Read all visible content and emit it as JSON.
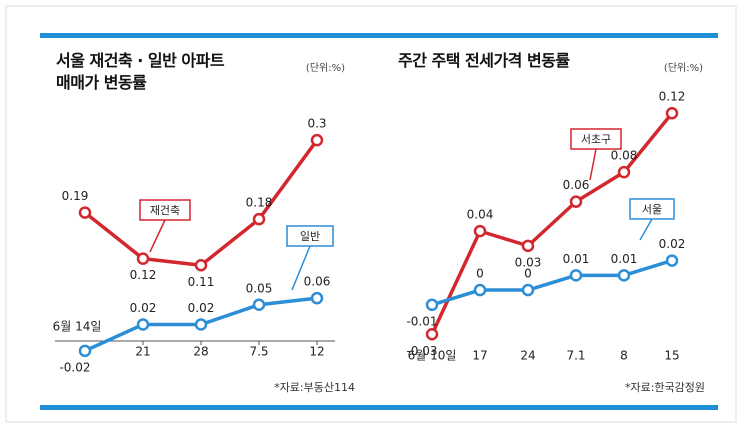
{
  "chart_data": [
    {
      "type": "line",
      "title": "서울 재건축 · 일반 아파트\n매매가 변동률",
      "unit": "(단위:%)",
      "source": "*자료:부동산114",
      "categories": [
        "6월 14일",
        "21",
        "28",
        "7.5",
        "12"
      ],
      "series": [
        {
          "name": "재건축",
          "color": "#d3272e",
          "values": [
            0.19,
            0.12,
            0.11,
            0.18,
            0.3
          ]
        },
        {
          "name": "일반",
          "color": "#2b8ed6",
          "values": [
            -0.02,
            0.02,
            0.02,
            0.05,
            0.06
          ]
        }
      ],
      "ylim": [
        -0.04,
        0.32
      ]
    },
    {
      "type": "line",
      "title": "주간 주택 전세가격 변동률",
      "unit": "(단위:%)",
      "source": "*자료:한국감정원",
      "categories": [
        "6월 10일",
        "17",
        "24",
        "7.1",
        "8",
        "15"
      ],
      "series": [
        {
          "name": "서초구",
          "color": "#d3272e",
          "values": [
            -0.03,
            0.04,
            0.03,
            0.06,
            0.08,
            0.12
          ]
        },
        {
          "name": "서울",
          "color": "#2b8ed6",
          "values": [
            -0.01,
            0,
            0,
            0.01,
            0.01,
            0.02
          ]
        }
      ],
      "ylim": [
        -0.04,
        0.13
      ]
    }
  ]
}
